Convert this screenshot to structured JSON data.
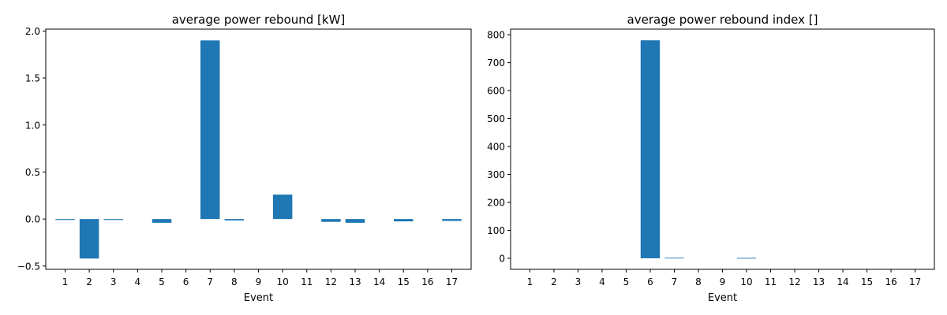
{
  "chart_data": [
    {
      "type": "bar",
      "title": "average power rebound [kW]",
      "xlabel": "Event",
      "ylabel": "",
      "categories": [
        "1",
        "2",
        "3",
        "4",
        "5",
        "6",
        "7",
        "8",
        "9",
        "10",
        "11",
        "12",
        "13",
        "14",
        "15",
        "16",
        "17"
      ],
      "values": [
        -0.01,
        -0.42,
        -0.01,
        0,
        -0.04,
        0,
        1.9,
        -0.015,
        0,
        0.26,
        0,
        -0.03,
        -0.04,
        0,
        -0.025,
        0,
        -0.02
      ],
      "ylim": [
        -0.535,
        2.02
      ],
      "yticks": [
        "−0.5",
        "0.0",
        "0.5",
        "1.0",
        "1.5",
        "2.0"
      ],
      "ytick_values": [
        -0.5,
        0,
        0.5,
        1,
        1.5,
        2
      ],
      "bar_color": "#1f77b4",
      "grid": false
    },
    {
      "type": "bar",
      "title": "average power rebound index []",
      "xlabel": "Event",
      "ylabel": "",
      "categories": [
        "1",
        "2",
        "3",
        "4",
        "5",
        "6",
        "7",
        "8",
        "9",
        "10",
        "11",
        "12",
        "13",
        "14",
        "15",
        "16",
        "17"
      ],
      "values": [
        0,
        0,
        0,
        0,
        0,
        780,
        2,
        0,
        0,
        1.5,
        0,
        0,
        0,
        0,
        0,
        0,
        0
      ],
      "ylim": [
        -39.5,
        820
      ],
      "yticks": [
        "0",
        "100",
        "200",
        "300",
        "400",
        "500",
        "600",
        "700",
        "800"
      ],
      "ytick_values": [
        0,
        100,
        200,
        300,
        400,
        500,
        600,
        700,
        800
      ],
      "bar_color": "#1f77b4",
      "grid": false
    }
  ]
}
